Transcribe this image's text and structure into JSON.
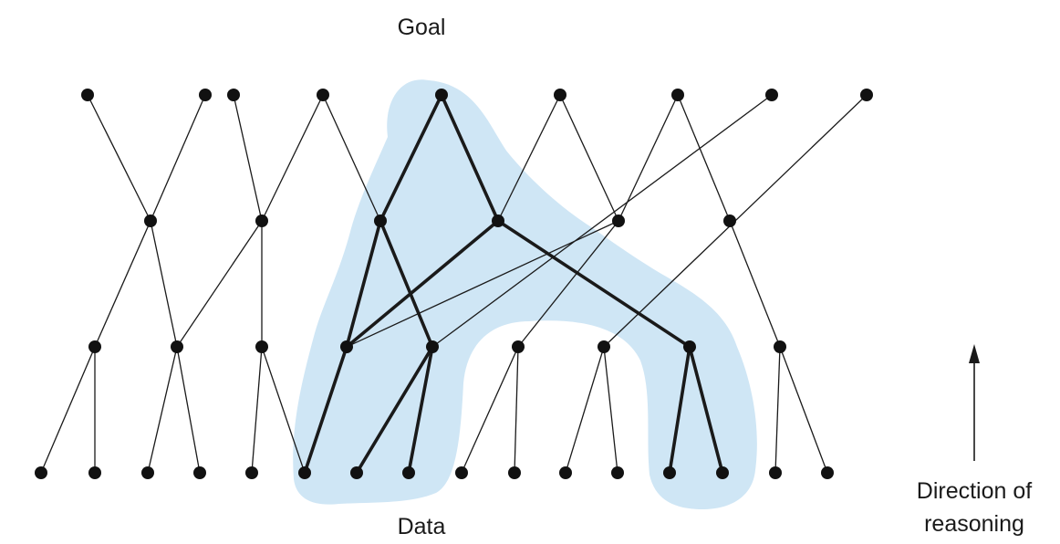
{
  "diagram": {
    "goal_label": "Goal",
    "data_label": "Data",
    "direction_label_line1": "Direction of",
    "direction_label_line2": "reasoning"
  },
  "colors": {
    "highlight_region": "#cfe6f5",
    "edge": "#1a1a1a",
    "node": "#111111"
  }
}
